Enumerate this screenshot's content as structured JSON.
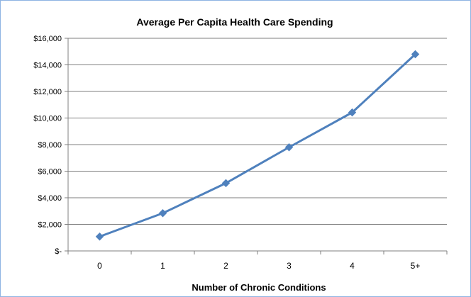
{
  "chart_data": {
    "type": "line",
    "title": "Average Per Capita Health Care Spending",
    "xlabel": "Number of Chronic Conditions",
    "ylabel": "",
    "categories": [
      "0",
      "1",
      "2",
      "3",
      "4",
      "5+"
    ],
    "series": [
      {
        "values": [
          1080,
          2840,
          5100,
          7800,
          10420,
          14800
        ]
      }
    ],
    "ylim": [
      0,
      16000
    ],
    "yticks": [
      0,
      2000,
      4000,
      6000,
      8000,
      10000,
      12000,
      14000,
      16000
    ],
    "ytick_labels": [
      "$-",
      "$2,000",
      "$4,000",
      "$6,000",
      "$8,000",
      "$10,000",
      "$12,000",
      "$14,000",
      "$16,000"
    ],
    "grid": "horizontal",
    "legend": "none",
    "colors": {
      "line": "#4f81bd",
      "marker": "#4f81bd",
      "grid": "#7f7f7f",
      "frame": "#8eb4e3"
    },
    "marker": "diamond-icon"
  }
}
